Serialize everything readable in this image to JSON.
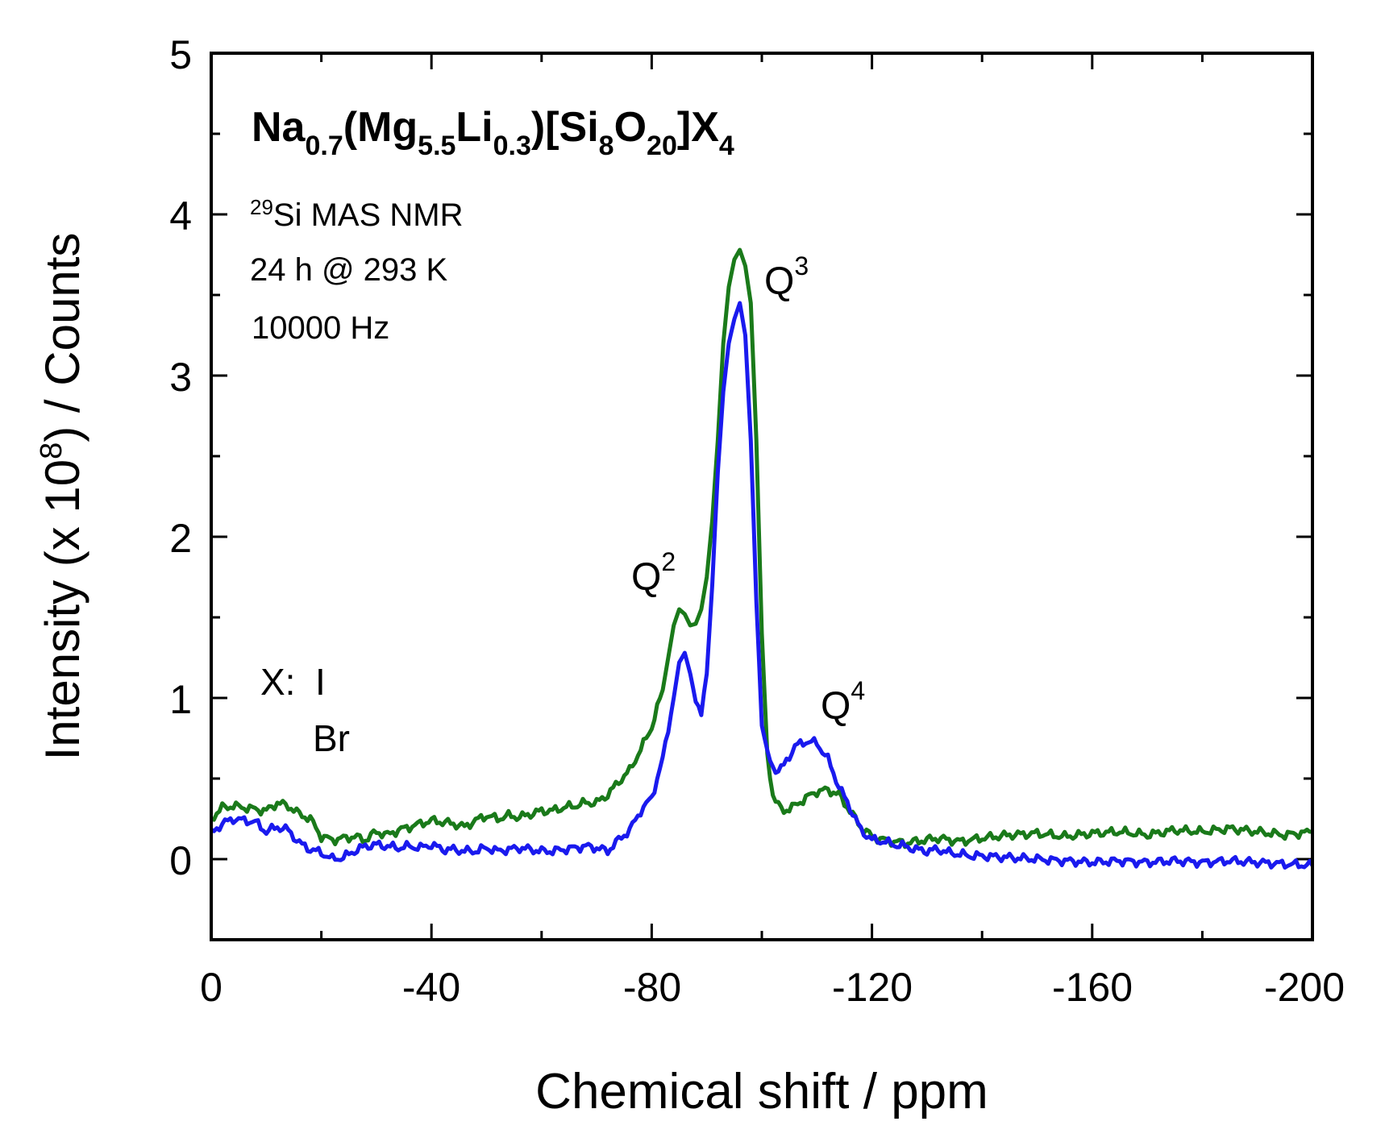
{
  "chart_data": {
    "type": "line",
    "title_parts": {
      "p1": "Na",
      "s1": "0.7",
      "p2": "(Mg",
      "s2": "5.5",
      "p3": "Li",
      "s3": "0.3",
      "p4": ")[Si",
      "s4": "8",
      "p5": "O",
      "s5": "20",
      "p6": "]X",
      "s6": "4"
    },
    "annotation": {
      "nucleus_sup": "29",
      "nmr": "Si MAS NMR",
      "duration": "24 h @ 293 K",
      "rate": "10000 Hz"
    },
    "xlabel": "Chemical shift / ppm",
    "ylabel_parts": {
      "a": "Intensity (x 10",
      "sup": "8",
      "b": ") / Counts"
    },
    "xlim": [
      0,
      -200
    ],
    "ylim": [
      -0.5,
      5
    ],
    "xticks": [
      0,
      -40,
      -80,
      -120,
      -160,
      -200
    ],
    "xtick_labels": [
      "0",
      "-40",
      "-80",
      "-120",
      "-160",
      "-200"
    ],
    "yticks": [
      0,
      1,
      2,
      3,
      4,
      5
    ],
    "ytick_labels": [
      "0",
      "1",
      "2",
      "3",
      "4",
      "5"
    ],
    "peaks": [
      {
        "label": "Q",
        "sup": "2",
        "x": -84.5,
        "y": 1.72
      },
      {
        "label": "Q",
        "sup": "3",
        "x": -105.5,
        "y": 3.5
      },
      {
        "label": "Q",
        "sup": "4",
        "x": -116,
        "y": 0.88
      }
    ],
    "legend": {
      "prefix": "X:",
      "entries": [
        "I",
        "Br"
      ],
      "placement": "left"
    },
    "colors": {
      "I": "#1a7a1a",
      "Br": "#1a1aee"
    },
    "series": [
      {
        "name": "I",
        "x": [
          0,
          -2,
          -4,
          -6,
          -8,
          -10,
          -12,
          -14,
          -16,
          -18,
          -20,
          -22,
          -24,
          -26,
          -28,
          -30,
          -32,
          -34,
          -36,
          -38,
          -40,
          -42,
          -44,
          -46,
          -48,
          -50,
          -52,
          -54,
          -56,
          -58,
          -60,
          -62,
          -64,
          -66,
          -68,
          -70,
          -72,
          -74,
          -76,
          -78,
          -80,
          -82,
          -84,
          -85,
          -86,
          -87,
          -88,
          -89,
          -90,
          -91,
          -92,
          -93,
          -94,
          -95,
          -96,
          -97,
          -98,
          -99,
          -100,
          -101,
          -102,
          -103,
          -104,
          -106,
          -108,
          -110,
          -112,
          -114,
          -116,
          -118,
          -120,
          -122,
          -124,
          -126,
          -128,
          -130,
          -132,
          -134,
          -136,
          -138,
          -140,
          -145,
          -150,
          -155,
          -160,
          -165,
          -170,
          -175,
          -180,
          -185,
          -190,
          -195,
          -200
        ],
        "y": [
          0.25,
          0.32,
          0.33,
          0.32,
          0.31,
          0.3,
          0.35,
          0.33,
          0.28,
          0.25,
          0.14,
          0.12,
          0.13,
          0.14,
          0.12,
          0.17,
          0.15,
          0.18,
          0.2,
          0.22,
          0.24,
          0.23,
          0.22,
          0.2,
          0.24,
          0.27,
          0.25,
          0.27,
          0.26,
          0.28,
          0.3,
          0.3,
          0.32,
          0.33,
          0.35,
          0.35,
          0.4,
          0.48,
          0.55,
          0.68,
          0.82,
          1.05,
          1.45,
          1.55,
          1.52,
          1.45,
          1.46,
          1.55,
          1.75,
          2.1,
          2.6,
          3.2,
          3.55,
          3.72,
          3.78,
          3.68,
          3.45,
          2.6,
          1.4,
          0.65,
          0.4,
          0.33,
          0.3,
          0.33,
          0.38,
          0.42,
          0.43,
          0.4,
          0.3,
          0.2,
          0.14,
          0.12,
          0.11,
          0.1,
          0.11,
          0.12,
          0.13,
          0.12,
          0.11,
          0.12,
          0.13,
          0.15,
          0.16,
          0.14,
          0.16,
          0.17,
          0.15,
          0.18,
          0.17,
          0.19,
          0.17,
          0.15,
          0.17
        ]
      },
      {
        "name": "Br",
        "x": [
          0,
          -2,
          -4,
          -6,
          -8,
          -10,
          -12,
          -14,
          -16,
          -18,
          -20,
          -22,
          -24,
          -26,
          -28,
          -30,
          -32,
          -34,
          -36,
          -38,
          -40,
          -42,
          -44,
          -46,
          -48,
          -50,
          -52,
          -54,
          -56,
          -58,
          -60,
          -62,
          -64,
          -66,
          -68,
          -70,
          -72,
          -74,
          -76,
          -78,
          -80,
          -82,
          -84,
          -85,
          -86,
          -87,
          -88,
          -89,
          -90,
          -91,
          -92,
          -93,
          -94,
          -95,
          -96,
          -97,
          -98,
          -99,
          -100,
          -101,
          -102,
          -103,
          -104,
          -106,
          -108,
          -110,
          -112,
          -114,
          -116,
          -118,
          -120,
          -122,
          -124,
          -126,
          -128,
          -130,
          -132,
          -134,
          -136,
          -138,
          -140,
          -145,
          -150,
          -155,
          -160,
          -165,
          -170,
          -175,
          -180,
          -185,
          -190,
          -195,
          -200
        ],
        "y": [
          0.16,
          0.22,
          0.25,
          0.24,
          0.23,
          0.17,
          0.2,
          0.18,
          0.1,
          0.06,
          0.04,
          0.0,
          0.01,
          0.05,
          0.08,
          0.09,
          0.08,
          0.07,
          0.08,
          0.07,
          0.09,
          0.06,
          0.06,
          0.05,
          0.05,
          0.07,
          0.05,
          0.06,
          0.07,
          0.06,
          0.05,
          0.05,
          0.06,
          0.07,
          0.08,
          0.07,
          0.05,
          0.12,
          0.18,
          0.3,
          0.38,
          0.62,
          1.0,
          1.22,
          1.28,
          1.15,
          0.98,
          0.92,
          1.15,
          1.7,
          2.4,
          2.9,
          3.2,
          3.35,
          3.45,
          3.25,
          2.6,
          1.6,
          0.85,
          0.65,
          0.57,
          0.55,
          0.58,
          0.7,
          0.73,
          0.72,
          0.62,
          0.45,
          0.32,
          0.18,
          0.12,
          0.11,
          0.09,
          0.08,
          0.06,
          0.05,
          0.06,
          0.04,
          0.03,
          0.02,
          0.02,
          0.01,
          0.0,
          -0.01,
          -0.02,
          -0.01,
          -0.02,
          -0.01,
          -0.02,
          -0.01,
          -0.02,
          -0.03,
          -0.04
        ]
      }
    ]
  }
}
